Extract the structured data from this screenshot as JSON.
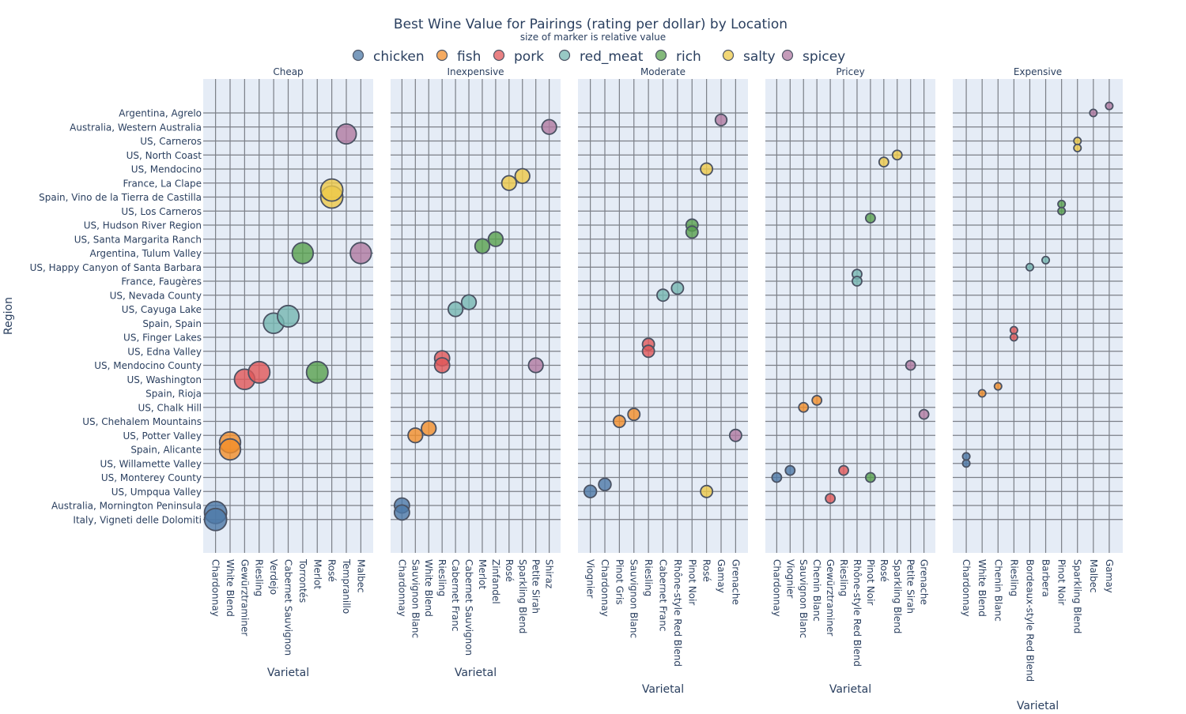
{
  "chart_data": {
    "type": "scatter",
    "title": "Best Wine Value for Pairings (rating per dollar) by Location",
    "subtitle": "size of marker is relative value",
    "ylabel": "Region",
    "xlabel": "Varietal",
    "legend_position": "top-center",
    "grid": true,
    "marker_note": "Marker size encodes relative value (rating per dollar); exact values are not printed on the chart.",
    "legend": [
      {
        "name": "chicken",
        "color": "#4e79a7"
      },
      {
        "name": "fish",
        "color": "#f28e2b"
      },
      {
        "name": "pork",
        "color": "#e15759"
      },
      {
        "name": "red_meat",
        "color": "#76b7b2"
      },
      {
        "name": "rich",
        "color": "#59a14f"
      },
      {
        "name": "salty",
        "color": "#edc948"
      },
      {
        "name": "spicey",
        "color": "#b07aa1"
      }
    ],
    "regions": [
      "Argentina, Agrelo",
      "Australia, Western Australia",
      "US, Carneros",
      "US, North Coast",
      "US, Mendocino",
      "France, La Clape",
      "Spain, Vino de la Tierra de Castilla",
      "US, Los Carneros",
      "US, Hudson River Region",
      "US, Santa Margarita Ranch",
      "Argentina, Tulum Valley",
      "US, Happy Canyon of Santa Barbara",
      "France, Faugères",
      "US, Nevada County",
      "US, Cayuga Lake",
      "Spain, Spain",
      "US, Finger Lakes",
      "US, Edna Valley",
      "US, Mendocino County",
      "US, Washington",
      "Spain, Rioja",
      "US, Chalk Hill",
      "US, Chehalem Mountains",
      "US, Potter Valley",
      "Spain, Alicante",
      "US, Willamette Valley",
      "US, Monterey County",
      "US, Umpqua Valley",
      "Australia, Mornington Peninsula",
      "Italy, Vigneti delle Dolomiti"
    ],
    "panels": [
      {
        "title": "Cheap",
        "varietals": [
          "Chardonnay",
          "White Blend",
          "Gewürztraminer",
          "Riesling",
          "Verdejo",
          "Cabernet Sauvignon",
          "Torrontés",
          "Merlot",
          "Rosé",
          "Tempranillo",
          "Malbec"
        ],
        "points": [
          {
            "pairing": "chicken",
            "varietal": "Chardonnay",
            "y": 28.5,
            "size": 1.0
          },
          {
            "pairing": "chicken",
            "varietal": "Chardonnay",
            "y": 29.0,
            "size": 1.0
          },
          {
            "pairing": "fish",
            "varietal": "White Blend",
            "y": 23.5,
            "size": 0.95
          },
          {
            "pairing": "fish",
            "varietal": "White Blend",
            "y": 24.0,
            "size": 0.95
          },
          {
            "pairing": "pork",
            "varietal": "Gewürztraminer",
            "y": 19.0,
            "size": 0.92
          },
          {
            "pairing": "pork",
            "varietal": "Riesling",
            "y": 18.5,
            "size": 0.97
          },
          {
            "pairing": "red_meat",
            "varietal": "Verdejo",
            "y": 15.0,
            "size": 0.92
          },
          {
            "pairing": "red_meat",
            "varietal": "Cabernet Sauvignon",
            "y": 14.5,
            "size": 0.97
          },
          {
            "pairing": "rich",
            "varietal": "Torrontés",
            "y": 10.0,
            "size": 0.95
          },
          {
            "pairing": "rich",
            "varietal": "Merlot",
            "y": 18.5,
            "size": 0.97
          },
          {
            "pairing": "salty",
            "varietal": "Rosé",
            "y": 6.0,
            "size": 1.0
          },
          {
            "pairing": "salty",
            "varietal": "Rosé",
            "y": 5.5,
            "size": 1.0
          },
          {
            "pairing": "spicey",
            "varietal": "Tempranillo",
            "y": 1.5,
            "size": 0.9
          },
          {
            "pairing": "spicey",
            "varietal": "Malbec",
            "y": 10.0,
            "size": 0.95
          }
        ]
      },
      {
        "title": "Inexpensive",
        "varietals": [
          "Chardonnay",
          "Sauvignon Blanc",
          "White Blend",
          "Riesling",
          "Cabernet Franc",
          "Cabernet Sauvignon",
          "Merlot",
          "Zinfandel",
          "Rosé",
          "Sparkling Blend",
          "Petite Sirah",
          "Shiraz"
        ],
        "points": [
          {
            "pairing": "chicken",
            "varietal": "Chardonnay",
            "y": 28.0,
            "size": 0.68
          },
          {
            "pairing": "chicken",
            "varietal": "Chardonnay",
            "y": 28.5,
            "size": 0.68
          },
          {
            "pairing": "fish",
            "varietal": "Sauvignon Blanc",
            "y": 23.0,
            "size": 0.66
          },
          {
            "pairing": "fish",
            "varietal": "White Blend",
            "y": 22.5,
            "size": 0.66
          },
          {
            "pairing": "pork",
            "varietal": "Riesling",
            "y": 17.5,
            "size": 0.68
          },
          {
            "pairing": "pork",
            "varietal": "Riesling",
            "y": 18.0,
            "size": 0.68
          },
          {
            "pairing": "red_meat",
            "varietal": "Cabernet Franc",
            "y": 14.0,
            "size": 0.66
          },
          {
            "pairing": "red_meat",
            "varietal": "Cabernet Sauvignon",
            "y": 13.5,
            "size": 0.66
          },
          {
            "pairing": "rich",
            "varietal": "Merlot",
            "y": 9.5,
            "size": 0.66
          },
          {
            "pairing": "rich",
            "varietal": "Zinfandel",
            "y": 9.0,
            "size": 0.66
          },
          {
            "pairing": "salty",
            "varietal": "Rosé",
            "y": 5.0,
            "size": 0.66
          },
          {
            "pairing": "salty",
            "varietal": "Sparkling Blend",
            "y": 4.5,
            "size": 0.66
          },
          {
            "pairing": "spicey",
            "varietal": "Petite Sirah",
            "y": 18.0,
            "size": 0.66
          },
          {
            "pairing": "spicey",
            "varietal": "Shiraz",
            "y": 1.0,
            "size": 0.66
          }
        ]
      },
      {
        "title": "Moderate",
        "varietals": [
          "Viognier",
          "Chardonnay",
          "Pinot Gris",
          "Sauvignon Blanc",
          "Riesling",
          "Cabernet Franc",
          "Rhône-style Red Blend",
          "Pinot Noir",
          "Rosé",
          "Gamay",
          "Grenache"
        ],
        "points": [
          {
            "pairing": "chicken",
            "varietal": "Viognier",
            "y": 27.0,
            "size": 0.56
          },
          {
            "pairing": "chicken",
            "varietal": "Chardonnay",
            "y": 26.5,
            "size": 0.56
          },
          {
            "pairing": "fish",
            "varietal": "Pinot Gris",
            "y": 22.0,
            "size": 0.54
          },
          {
            "pairing": "fish",
            "varietal": "Sauvignon Blanc",
            "y": 21.5,
            "size": 0.54
          },
          {
            "pairing": "pork",
            "varietal": "Riesling",
            "y": 16.5,
            "size": 0.54
          },
          {
            "pairing": "pork",
            "varietal": "Riesling",
            "y": 17.0,
            "size": 0.54
          },
          {
            "pairing": "red_meat",
            "varietal": "Cabernet Franc",
            "y": 13.0,
            "size": 0.54
          },
          {
            "pairing": "red_meat",
            "varietal": "Rhône-style Red Blend",
            "y": 12.5,
            "size": 0.54
          },
          {
            "pairing": "rich",
            "varietal": "Pinot Noir",
            "y": 8.0,
            "size": 0.54
          },
          {
            "pairing": "rich",
            "varietal": "Pinot Noir",
            "y": 8.5,
            "size": 0.54
          },
          {
            "pairing": "salty",
            "varietal": "Rosé",
            "y": 4.0,
            "size": 0.54
          },
          {
            "pairing": "salty",
            "varietal": "Rosé",
            "y": 27.0,
            "size": 0.54
          },
          {
            "pairing": "spicey",
            "varietal": "Gamay",
            "y": 0.5,
            "size": 0.52
          },
          {
            "pairing": "spicey",
            "varietal": "Grenache",
            "y": 23.0,
            "size": 0.54
          }
        ]
      },
      {
        "title": "Pricey",
        "varietals": [
          "Chardonnay",
          "Viognier",
          "Sauvignon Blanc",
          "Chenin Blanc",
          "Gewürztraminer",
          "Riesling",
          "Rhône-style Red Blend",
          "Pinot Noir",
          "Rosé",
          "Sparkling Blend",
          "Petite Sirah",
          "Grenache"
        ],
        "points": [
          {
            "pairing": "chicken",
            "varietal": "Chardonnay",
            "y": 26.0,
            "size": 0.43
          },
          {
            "pairing": "chicken",
            "varietal": "Viognier",
            "y": 25.5,
            "size": 0.43
          },
          {
            "pairing": "fish",
            "varietal": "Sauvignon Blanc",
            "y": 21.0,
            "size": 0.43
          },
          {
            "pairing": "fish",
            "varietal": "Chenin Blanc",
            "y": 20.5,
            "size": 0.43
          },
          {
            "pairing": "pork",
            "varietal": "Gewürztraminer",
            "y": 27.5,
            "size": 0.43
          },
          {
            "pairing": "pork",
            "varietal": "Riesling",
            "y": 25.5,
            "size": 0.43
          },
          {
            "pairing": "red_meat",
            "varietal": "Rhône-style Red Blend",
            "y": 11.5,
            "size": 0.43
          },
          {
            "pairing": "red_meat",
            "varietal": "Rhône-style Red Blend",
            "y": 12.0,
            "size": 0.43
          },
          {
            "pairing": "rich",
            "varietal": "Pinot Noir",
            "y": 7.5,
            "size": 0.43
          },
          {
            "pairing": "rich",
            "varietal": "Pinot Noir",
            "y": 26.0,
            "size": 0.43
          },
          {
            "pairing": "salty",
            "varietal": "Rosé",
            "y": 3.5,
            "size": 0.43
          },
          {
            "pairing": "salty",
            "varietal": "Sparkling Blend",
            "y": 3.0,
            "size": 0.43
          },
          {
            "pairing": "spicey",
            "varietal": "Petite Sirah",
            "y": 18.0,
            "size": 0.43
          },
          {
            "pairing": "spicey",
            "varietal": "Grenache",
            "y": 21.5,
            "size": 0.43
          }
        ]
      },
      {
        "title": "Expensive",
        "varietals": [
          "Chardonnay",
          "White Blend",
          "Chenin Blanc",
          "Riesling",
          "Bordeaux-style Red Blend",
          "Barbera",
          "Pinot Noir",
          "Sparkling Blend",
          "Malbec",
          "Gamay"
        ],
        "points": [
          {
            "pairing": "chicken",
            "varietal": "Chardonnay",
            "y": 25.0,
            "size": 0.33
          },
          {
            "pairing": "chicken",
            "varietal": "Chardonnay",
            "y": 24.5,
            "size": 0.33
          },
          {
            "pairing": "fish",
            "varietal": "White Blend",
            "y": 20.0,
            "size": 0.33
          },
          {
            "pairing": "fish",
            "varietal": "Chenin Blanc",
            "y": 19.5,
            "size": 0.33
          },
          {
            "pairing": "pork",
            "varietal": "Riesling",
            "y": 15.5,
            "size": 0.33
          },
          {
            "pairing": "pork",
            "varietal": "Riesling",
            "y": 16.0,
            "size": 0.33
          },
          {
            "pairing": "red_meat",
            "varietal": "Bordeaux-style Red Blend",
            "y": 11.0,
            "size": 0.33
          },
          {
            "pairing": "red_meat",
            "varietal": "Barbera",
            "y": 10.5,
            "size": 0.33
          },
          {
            "pairing": "rich",
            "varietal": "Pinot Noir",
            "y": 6.5,
            "size": 0.33
          },
          {
            "pairing": "rich",
            "varietal": "Pinot Noir",
            "y": 7.0,
            "size": 0.33
          },
          {
            "pairing": "salty",
            "varietal": "Sparkling Blend",
            "y": 2.0,
            "size": 0.33
          },
          {
            "pairing": "salty",
            "varietal": "Sparkling Blend",
            "y": 2.5,
            "size": 0.33
          },
          {
            "pairing": "spicey",
            "varietal": "Malbec",
            "y": 0.0,
            "size": 0.33
          },
          {
            "pairing": "spicey",
            "varietal": "Gamay",
            "y": -0.5,
            "size": 0.33
          }
        ]
      }
    ]
  }
}
